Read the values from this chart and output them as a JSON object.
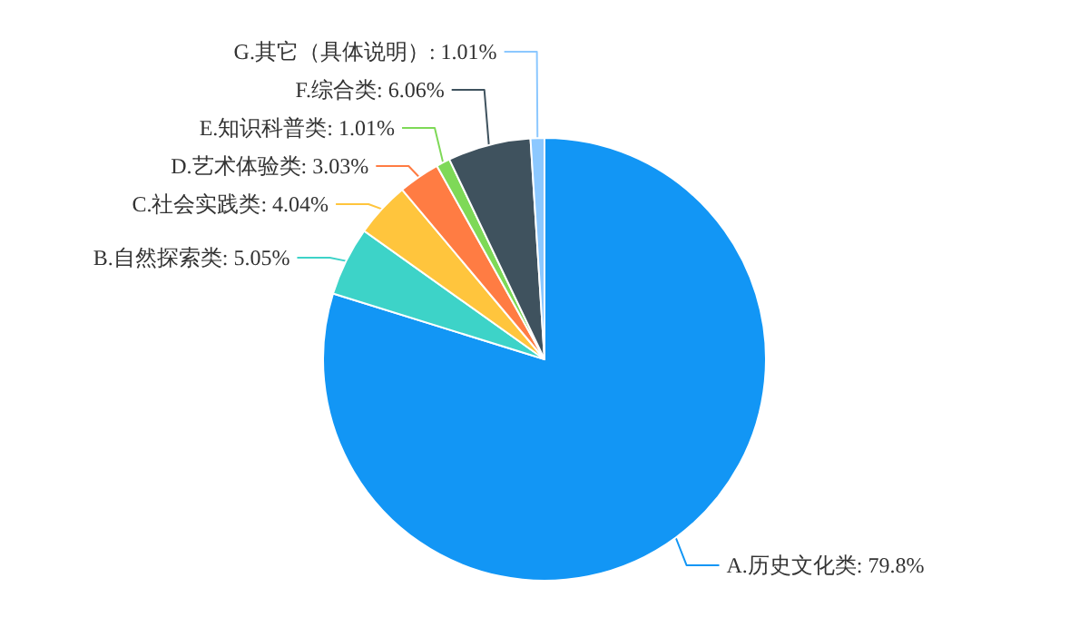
{
  "chart_data": {
    "type": "pie",
    "categories": [
      "A.历史文化类",
      "B.自然探索类",
      "C.社会实践类",
      "D.艺术体验类",
      "E.知识科普类",
      "F.综合类",
      "G.其它（具体说明）"
    ],
    "values": [
      79.8,
      5.05,
      4.04,
      3.03,
      1.01,
      6.06,
      1.01
    ],
    "value_labels": [
      "79.8%",
      "5.05%",
      "4.04%",
      "3.03%",
      "1.01%",
      "6.06%",
      "1.01%"
    ],
    "colors": [
      "#1296f5",
      "#3dd3c8",
      "#ffc53d",
      "#ff7c43",
      "#7ed957",
      "#3f525e",
      "#8cc8ff"
    ]
  }
}
